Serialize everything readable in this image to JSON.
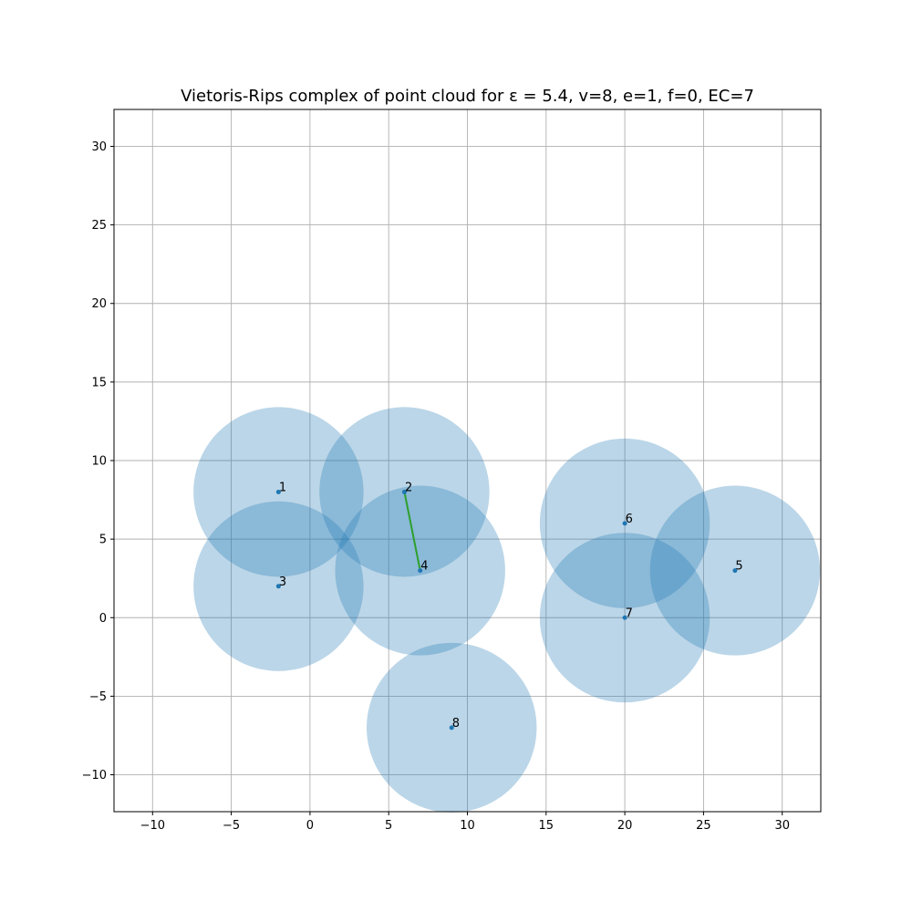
{
  "chart_data": {
    "type": "scatter",
    "title": "Vietoris-Rips complex of point cloud for ε = 5.4, v=8, e=1, f=0, EC=7",
    "xlabel": "",
    "ylabel": "",
    "xlim": [
      -12.45,
      32.45
    ],
    "ylim": [
      -12.35,
      32.35
    ],
    "xticks": [
      -10,
      -5,
      0,
      5,
      10,
      15,
      20,
      25,
      30
    ],
    "yticks": [
      -10,
      -5,
      0,
      5,
      10,
      15,
      20,
      25,
      30
    ],
    "grid": true,
    "epsilon": 5.4,
    "radius": 5.4,
    "points": [
      {
        "label": "1",
        "x": -2,
        "y": 8
      },
      {
        "label": "2",
        "x": 6,
        "y": 8
      },
      {
        "label": "3",
        "x": -2,
        "y": 2
      },
      {
        "label": "4",
        "x": 7,
        "y": 3
      },
      {
        "label": "5",
        "x": 27,
        "y": 3
      },
      {
        "label": "6",
        "x": 20,
        "y": 6
      },
      {
        "label": "7",
        "x": 20,
        "y": 0
      },
      {
        "label": "8",
        "x": 9,
        "y": -7
      }
    ],
    "edges": [
      {
        "from": "2",
        "to": "4"
      }
    ],
    "colors": {
      "point": "#1f77b4",
      "circle": "#1f77b4",
      "edge": "#2ca02c",
      "grid": "#b0b0b0"
    }
  }
}
